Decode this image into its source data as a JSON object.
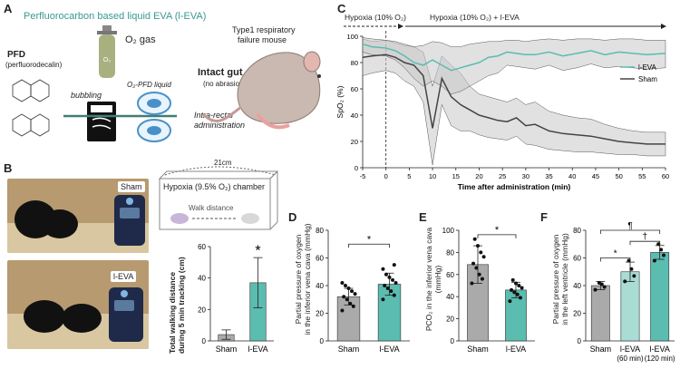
{
  "panels": {
    "a": "A",
    "b": "B",
    "c": "C",
    "d": "D",
    "e": "E",
    "f": "F"
  },
  "panel_a": {
    "title": "Perfluorocarbon based liquid EVA (l-EVA)",
    "pfd_name": "PFD",
    "pfd_sub": "(perfluorodecalin)",
    "gas": "O₂ gas",
    "bubbling": "bubbling",
    "liquid": "O₂-PFD liquid",
    "mouse_line1": "Type1 respiratory",
    "mouse_line2": "failure mouse",
    "gut": "Intact gut",
    "gut_sub": "(no abrasion)",
    "admin_line1": "Intra-rectal",
    "admin_line2": "administration",
    "cylinder_label": "O₂"
  },
  "panel_b": {
    "sham": "Sham",
    "levea": "l-EVA",
    "box_width": "21cm",
    "chamber": "Hypoxia (9.5% O₂) chamber",
    "walk": "Walk distance",
    "ylabel_line1": "Total walking distance",
    "ylabel_line2": "during 5 min tracking (cm)",
    "sig": "*",
    "colors": {
      "sham": "#aaaaaa",
      "levea": "#5bbcb0"
    }
  },
  "panel_c": {
    "phase1": "Hypoxia (10% O₂)",
    "phase2": "Hypoxia (10% O₂) + l-EVA",
    "legend": [
      "l-EVA",
      "Sham"
    ],
    "colors": {
      "levea": "#5bbcb0",
      "sham": "#444444",
      "band": "#c8c8c8"
    }
  },
  "panel_d": {
    "ylabel_line1": "Partial pressure of oxygen",
    "ylabel_line2": "in the inferior vena cava (mmHg)",
    "sig": "*"
  },
  "panel_e": {
    "ylabel_line1": "PCO₂ in the inferior vena cava",
    "ylabel_line2": "(mmHg)",
    "sig": "*"
  },
  "panel_f": {
    "ylabel_line1": "Partial pressure of oxygen",
    "ylabel_line2": "in the left ventricle (mmHg)",
    "sig1": "*",
    "sig2": "†",
    "sig3": "¶",
    "cat_sub": [
      "",
      "(60 min)",
      "(120 min)"
    ],
    "colors": [
      "#aaaaaa",
      "#a8dcd4",
      "#5bbcb0"
    ]
  },
  "chart_data": [
    {
      "id": "B",
      "type": "bar",
      "categories": [
        "Sham",
        "l-EVA"
      ],
      "values": [
        4,
        37
      ],
      "errors": [
        3,
        16
      ],
      "ylabel": "Total walking distance during 5 min tracking (cm)",
      "ylim": [
        0,
        60
      ],
      "yticks": [
        0,
        20,
        40,
        60
      ]
    },
    {
      "id": "C",
      "type": "line",
      "xlabel": "Time after administration (min)",
      "ylabel": "SpO₂ (%)",
      "xlim": [
        -5,
        60
      ],
      "ylim": [
        0,
        100
      ],
      "xticks": [
        -5,
        0,
        5,
        10,
        15,
        20,
        25,
        30,
        35,
        40,
        45,
        50,
        55,
        60
      ],
      "yticks": [
        0,
        20,
        40,
        60,
        80,
        100
      ],
      "series": [
        {
          "name": "l-EVA",
          "x": [
            -5,
            -3,
            0,
            2,
            4,
            6,
            8,
            10,
            12,
            14,
            16,
            18,
            20,
            22,
            24,
            26,
            28,
            30,
            32,
            35,
            38,
            41,
            44,
            47,
            50,
            53,
            56,
            60
          ],
          "mean": [
            94,
            92,
            91,
            89,
            85,
            80,
            78,
            82,
            78,
            74,
            76,
            78,
            80,
            84,
            85,
            88,
            87,
            86,
            86,
            88,
            85,
            87,
            89,
            86,
            88,
            87,
            86,
            87
          ],
          "upper": [
            99,
            98,
            97,
            96,
            94,
            92,
            93,
            96,
            95,
            92,
            92,
            94,
            95,
            96,
            96,
            97,
            97,
            96,
            97,
            98,
            97,
            98,
            98,
            97,
            98,
            98,
            97,
            97
          ],
          "lower": [
            88,
            86,
            85,
            82,
            76,
            68,
            62,
            66,
            62,
            56,
            58,
            62,
            66,
            70,
            72,
            78,
            77,
            76,
            75,
            78,
            74,
            76,
            79,
            76,
            77,
            76,
            75,
            76
          ]
        },
        {
          "name": "Sham",
          "x": [
            -5,
            -3,
            0,
            2,
            4,
            6,
            8,
            10,
            12,
            14,
            16,
            18,
            20,
            22,
            24,
            26,
            28,
            30,
            32,
            35,
            38,
            41,
            44,
            47,
            50,
            53,
            56,
            60
          ],
          "mean": [
            84,
            85,
            86,
            84,
            80,
            78,
            70,
            30,
            68,
            54,
            48,
            44,
            40,
            38,
            36,
            35,
            38,
            32,
            33,
            28,
            26,
            25,
            24,
            22,
            20,
            19,
            18,
            18
          ],
          "upper": [
            98,
            96,
            97,
            95,
            93,
            92,
            88,
            62,
            85,
            78,
            72,
            62,
            56,
            54,
            52,
            50,
            53,
            48,
            50,
            43,
            40,
            38,
            37,
            33,
            30,
            28,
            27,
            27
          ],
          "lower": [
            70,
            72,
            74,
            72,
            66,
            62,
            50,
            2,
            48,
            32,
            28,
            28,
            25,
            23,
            22,
            21,
            24,
            18,
            17,
            14,
            13,
            12,
            12,
            11,
            10,
            10,
            9,
            9
          ]
        }
      ]
    },
    {
      "id": "D",
      "type": "bar",
      "categories": [
        "Sham",
        "l-EVA"
      ],
      "values": [
        32,
        41
      ],
      "errors": [
        6,
        8
      ],
      "points": [
        [
          22,
          25,
          27,
          30,
          32,
          34,
          36,
          38,
          40,
          42
        ],
        [
          30,
          33,
          36,
          38,
          40,
          42,
          44,
          46,
          48,
          52,
          55
        ]
      ],
      "ylabel": "Partial pressure of oxygen in the inferior vena cava (mmHg)",
      "ylim": [
        0,
        80
      ],
      "yticks": [
        0,
        20,
        40,
        60,
        80
      ]
    },
    {
      "id": "E",
      "type": "bar",
      "categories": [
        "Sham",
        "l-EVA"
      ],
      "values": [
        69,
        46
      ],
      "errors": [
        17,
        7
      ],
      "points": [
        [
          52,
          56,
          60,
          66,
          70,
          76,
          80,
          86,
          92
        ],
        [
          36,
          39,
          42,
          44,
          46,
          48,
          50,
          52,
          55
        ]
      ],
      "ylabel": "PCO₂ in the inferior vena cava (mmHg)",
      "ylim": [
        0,
        100
      ],
      "yticks": [
        0,
        20,
        40,
        60,
        80,
        100
      ]
    },
    {
      "id": "F",
      "type": "bar",
      "categories": [
        "Sham",
        "l-EVA",
        "l-EVA"
      ],
      "values": [
        40,
        50,
        64
      ],
      "errors": [
        3,
        7,
        5
      ],
      "points": [
        [
          37,
          39,
          41,
          42
        ],
        [
          43,
          47,
          52,
          58
        ],
        [
          58,
          62,
          66,
          70
        ]
      ],
      "ylabel": "Partial pressure of oxygen in the left ventricle (mmHg)",
      "ylim": [
        0,
        80
      ],
      "yticks": [
        0,
        20,
        40,
        60,
        80
      ]
    }
  ]
}
